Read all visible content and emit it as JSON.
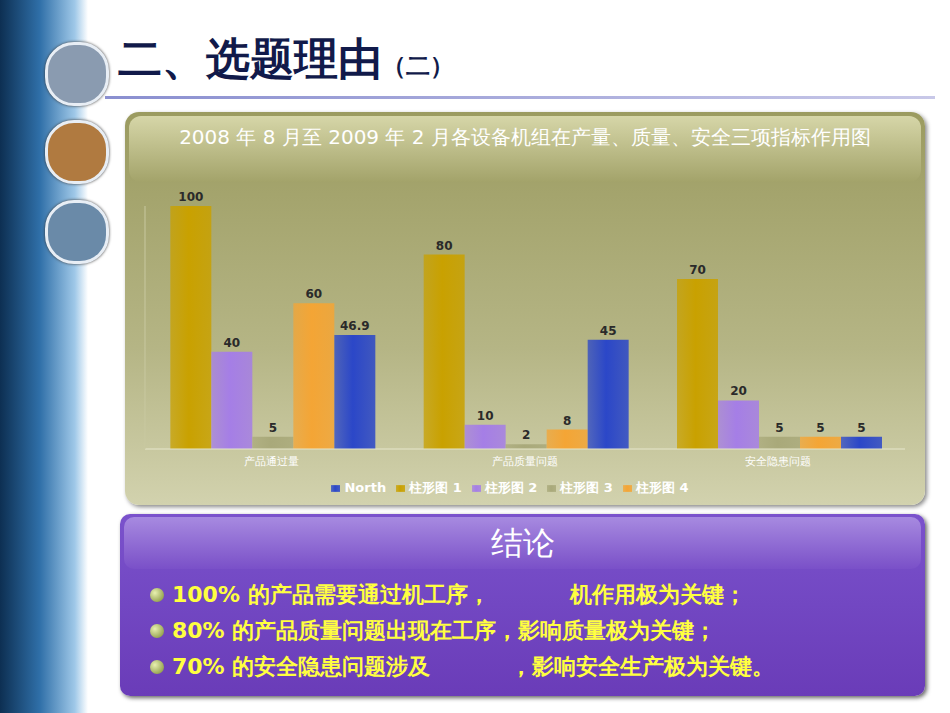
{
  "slide_title": "二、选题理由",
  "slide_subtitle": "（二）",
  "chart_data": {
    "type": "bar",
    "title": "2008 年 8 月至 2009 年 2 月各设备机组在产量、质量、安全三项指标作用图",
    "categories": [
      "产品通过量",
      "产品质量问题",
      "安全隐患问题"
    ],
    "series": [
      {
        "name": "柱形图 1",
        "color": "#c9a100",
        "values": [
          100,
          80,
          70
        ]
      },
      {
        "name": "柱形图 2",
        "color": "#a57ee6",
        "values": [
          40,
          10,
          20
        ]
      },
      {
        "name": "柱形图 3",
        "color": "#a9a97a",
        "values": [
          5,
          2,
          5
        ]
      },
      {
        "name": "柱形图 4",
        "color": "#f4a535",
        "values": [
          60,
          8,
          5
        ]
      },
      {
        "name": "North",
        "color": "#2b47c8",
        "values": [
          46.9,
          45,
          5
        ]
      }
    ],
    "ylim": [
      0,
      100
    ],
    "tick_labels": "x",
    "data_labels": true,
    "legend": "bottom",
    "grid": false
  },
  "conclusion": {
    "title": "结论",
    "lines": [
      [
        "100% 的产品需要通过机工序，",
        "机作用极为关键；"
      ],
      [
        "80% 的产品质量问题出现在工序，影响质量极为关键；"
      ],
      [
        "70% 的安全隐患问题涉及",
        "，影响安全生产极为关键。"
      ]
    ]
  }
}
